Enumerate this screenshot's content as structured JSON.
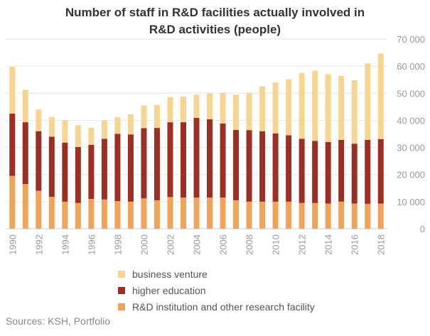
{
  "chart_data": {
    "type": "bar",
    "stacked": true,
    "title_line1": "Number of staff in R&D facilities actually involved in",
    "title_line2": "R&D activities (people)",
    "categories": [
      "1990",
      "1991",
      "1992",
      "1993",
      "1994",
      "1995",
      "1996",
      "1997",
      "1998",
      "1999",
      "2000",
      "2001",
      "2002",
      "2003",
      "2004",
      "2005",
      "2006",
      "2007",
      "2008",
      "2009",
      "2010",
      "2011",
      "2012",
      "2013",
      "2014",
      "2015",
      "2016",
      "2017",
      "2018"
    ],
    "x_tick_labels": [
      "1990",
      "1992",
      "1994",
      "1996",
      "1998",
      "2000",
      "2002",
      "2004",
      "2006",
      "2008",
      "2010",
      "2012",
      "2014",
      "2016",
      "2018"
    ],
    "y_tick_labels": [
      "0",
      "10 000",
      "20 000",
      "30 000",
      "40 000",
      "50 000",
      "60 000",
      "70 000"
    ],
    "ylim": [
      0,
      70000
    ],
    "y_axis_position": "right",
    "legend_position": "bottom",
    "series": [
      {
        "name": "R&D institution and other research facility",
        "color": "#F0A45A",
        "values": [
          19500,
          16500,
          14000,
          11800,
          10000,
          9500,
          11000,
          10800,
          10200,
          10000,
          11200,
          10500,
          11700,
          11500,
          11500,
          11500,
          11500,
          10500,
          10000,
          10000,
          10000,
          10000,
          9500,
          9500,
          9300,
          10000,
          9300,
          9200,
          9300
        ]
      },
      {
        "name": "higher education",
        "color": "#9B2F24",
        "values": [
          23000,
          22800,
          22000,
          22200,
          21800,
          20700,
          20000,
          22400,
          24800,
          24800,
          25900,
          26700,
          27600,
          27800,
          29400,
          28900,
          27300,
          26000,
          26400,
          26000,
          25200,
          24500,
          23700,
          22900,
          22700,
          22800,
          22100,
          23600,
          23800
        ]
      },
      {
        "name": "business venture",
        "color": "#F6D593",
        "values": [
          17300,
          12000,
          8000,
          7200,
          8200,
          8000,
          6300,
          6800,
          6200,
          7400,
          8400,
          8500,
          9300,
          9500,
          8600,
          9600,
          11400,
          13000,
          13800,
          16500,
          18800,
          20700,
          24300,
          26000,
          25000,
          23600,
          23400,
          28200,
          31600
        ]
      }
    ],
    "legend_order": [
      "business venture",
      "higher education",
      "R&D institution and other research facility"
    ]
  },
  "source": "Sources: KSH, Portfolio"
}
